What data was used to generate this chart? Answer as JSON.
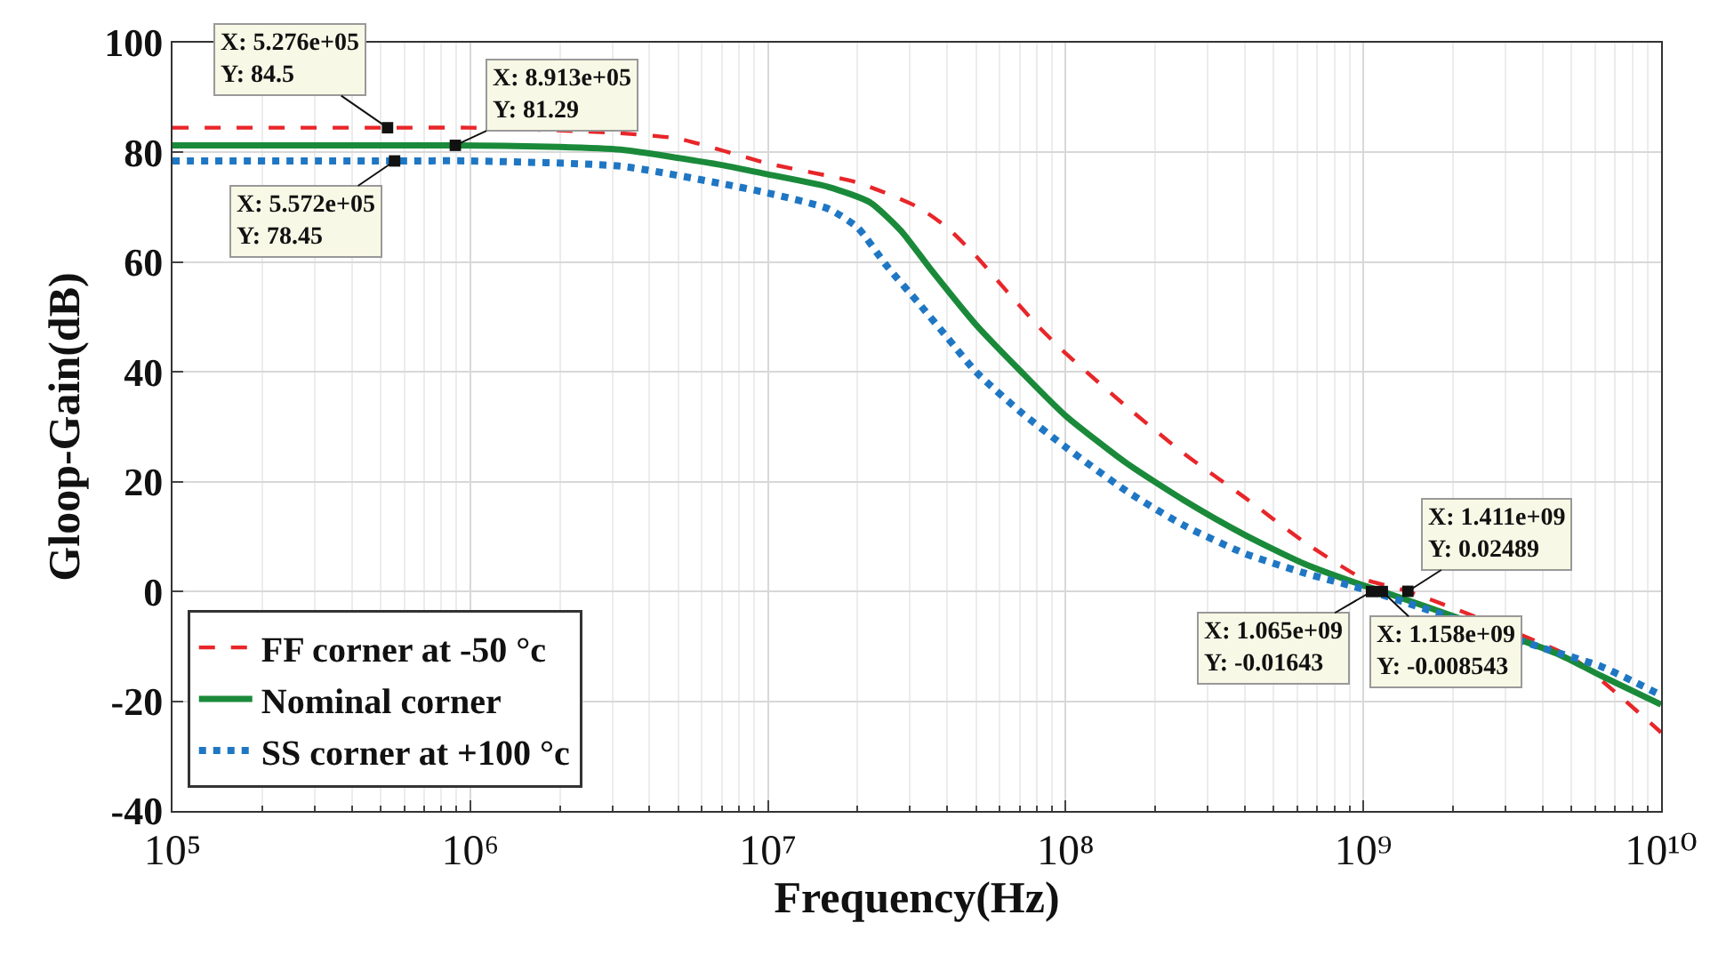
{
  "chart_data": {
    "type": "line",
    "xlabel": "Frequency(Hz)",
    "ylabel": "Gloop-Gain(dB)",
    "log": "x",
    "grid": true,
    "legend": "bottom left",
    "xlim": [
      100000,
      10000000000
    ],
    "xticks": [
      {
        "value": 100000,
        "label": "10⁵"
      },
      {
        "value": 1000000,
        "label": "10⁶"
      },
      {
        "value": 10000000,
        "label": "10⁷"
      },
      {
        "value": 100000000,
        "label": "10⁸"
      },
      {
        "value": 1000000000,
        "label": "10⁹"
      },
      {
        "value": 10000000000,
        "label": "10¹⁰"
      }
    ],
    "ylim": [
      -40,
      100
    ],
    "yticks": [
      -40,
      -20,
      0,
      20,
      40,
      60,
      80,
      100
    ],
    "series": [
      {
        "name": "FF corner at -50 °c",
        "color": "#e8262a",
        "line_style": "dashed",
        "x": [
          100000,
          527600,
          1000000,
          2000000,
          3200000,
          5000000,
          10000000,
          20000000,
          32000000,
          40000000,
          50000000,
          63000000,
          80000000,
          100000000,
          160000000,
          250000000,
          400000000,
          630000000,
          1000000000,
          1411000000,
          5000000000,
          7000000000,
          10000000000
        ],
        "values": [
          84.5,
          84.5,
          84.5,
          84,
          83.5,
          82.5,
          78,
          74.5,
          70,
          66.3,
          61.1,
          54.9,
          48.6,
          43.4,
          33.7,
          25.1,
          17.1,
          9.1,
          2.3,
          0.02489,
          -12,
          -18.3,
          -25.7
        ]
      },
      {
        "name": "Nominal corner",
        "color": "#1a8a3a",
        "line_style": "solid",
        "x": [
          100000,
          891300,
          2000000,
          3200000,
          7000000,
          10000000,
          16000000,
          22000000,
          28000000,
          35000000,
          50000000,
          71000000,
          100000000,
          160000000,
          250000000,
          400000000,
          630000000,
          1000000000,
          1158000000,
          4500000000,
          6300000000,
          10000000000
        ],
        "values": [
          81.29,
          81.29,
          81,
          80.5,
          77.7,
          76,
          73.7,
          70.9,
          65.7,
          58.9,
          48.6,
          40,
          32,
          23.4,
          16.6,
          10.3,
          5.1,
          1.1,
          -0.008543,
          -11.4,
          -15.4,
          -20.6
        ]
      },
      {
        "name": "SS corner at +100 °c",
        "color": "#1f77c4",
        "line_style": "dotted",
        "x": [
          100000,
          557200,
          1000000,
          3200000,
          7000000,
          10000000,
          16000000,
          20000000,
          25000000,
          32000000,
          40000000,
          50000000,
          71000000,
          100000000,
          160000000,
          250000000,
          400000000,
          630000000,
          1065000000,
          4000000000,
          6300000000,
          10000000000
        ],
        "values": [
          78.45,
          78.45,
          78.45,
          77.5,
          74.3,
          72.6,
          69.7,
          66.3,
          59.4,
          52.6,
          46.3,
          40,
          32.6,
          26.3,
          18.3,
          12,
          6.9,
          3.4,
          -0.01643,
          -10.3,
          -13.7,
          -18.9
        ]
      }
    ],
    "annotations": [
      {
        "text": "X: 5.276e+05\nY: 84.5",
        "x": 527600,
        "y": 84.5
      },
      {
        "text": "X: 8.913e+05\nY: 81.29",
        "x": 891300,
        "y": 81.29
      },
      {
        "text": "X: 5.572e+05\nY: 78.45",
        "x": 557200,
        "y": 78.45
      },
      {
        "text": "X: 1.065e+09\nY: -0.01643",
        "x": 1065000000,
        "y": -0.01643
      },
      {
        "text": "X: 1.158e+09\nY: -0.008543",
        "x": 1158000000,
        "y": -0.008543
      },
      {
        "text": "X: 1.411e+09\nY: 0.02489",
        "x": 1411000000,
        "y": 0.02489
      }
    ]
  }
}
